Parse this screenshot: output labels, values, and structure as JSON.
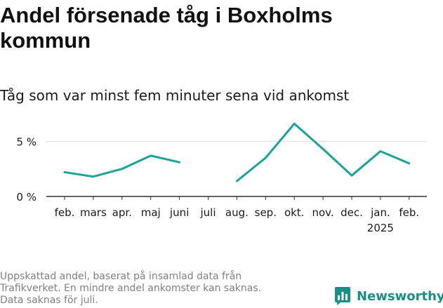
{
  "title": "Andel försenade tåg i Boxholms kommun",
  "subtitle": "Tåg som var minst fem minuter sena vid ankomst",
  "footnote": [
    "Uppskattad andel, baserat på insamlad data från",
    "Trafikverket. En mindre andel ankomster kan saknas.",
    "Data saknas för juli."
  ],
  "brand": {
    "name": "Newsworthy",
    "icon": "bar-chart-logo-icon",
    "color": "#1a8f84"
  },
  "chart_data": {
    "type": "line",
    "categories": [
      "feb.",
      "mars",
      "apr.",
      "maj",
      "juni",
      "juli",
      "aug.",
      "sep.",
      "okt.",
      "nov.",
      "dec.",
      "jan.",
      "feb."
    ],
    "year_labels": [
      "",
      "",
      "",
      "",
      "",
      "",
      "",
      "",
      "",
      "",
      "",
      "2025",
      ""
    ],
    "series": [
      {
        "values": [
          2.2,
          1.8,
          2.5,
          3.7,
          3.1,
          null,
          1.4,
          3.5,
          6.6,
          4.3,
          1.9,
          4.1,
          3.0
        ]
      }
    ],
    "y_ticks": [
      {
        "value": 0,
        "label": "0 %"
      },
      {
        "value": 5,
        "label": "5 %"
      }
    ],
    "ylim": [
      0,
      7
    ],
    "line_color": "#1aa399",
    "grid_color": "#dddddd",
    "axis_color": "#333333"
  }
}
